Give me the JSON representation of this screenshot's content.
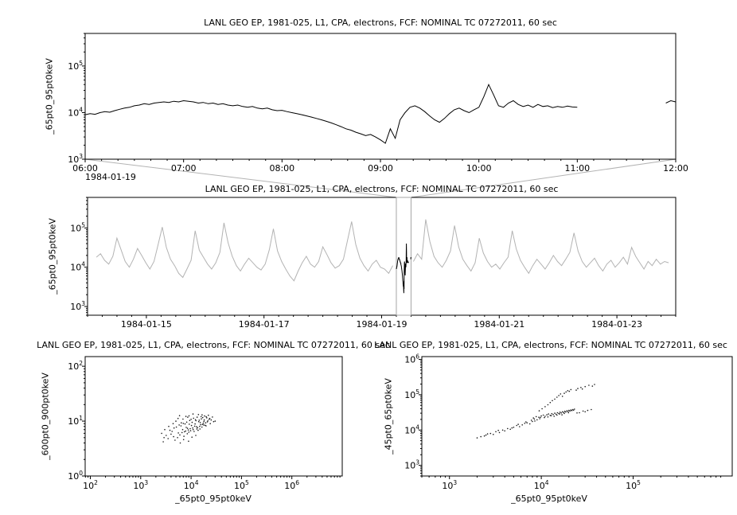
{
  "app": {
    "background": "#ffffff",
    "text_color": "#000000",
    "series_color": "#000000",
    "overview_series_color": "#b3b3b3",
    "highlight_series_color": "#000000",
    "selection_box_color": "#a6a6a6",
    "connector_color": "#b3b3b3",
    "scatter_dot_color": "#1a1a1a"
  },
  "chart_data": [
    {
      "id": "detail-timeseries",
      "type": "line",
      "title": "LANL GEO EP, 1981-025, L1, CPA, electrons, FCF: NOMINAL TC 07272011, 60 sec",
      "ylabel": "_65pt0_95pt0keV",
      "xlabel": "",
      "x_context_label": "1984-01-19",
      "x_log": false,
      "xlim": [
        6,
        12
      ],
      "ylim": [
        1000,
        500000
      ],
      "y_ticks_exponents": [
        3,
        4,
        5
      ],
      "x_ticks": [
        {
          "value": 6,
          "label": "06:00"
        },
        {
          "value": 7,
          "label": "07:00"
        },
        {
          "value": 8,
          "label": "08:00"
        },
        {
          "value": 9,
          "label": "09:00"
        },
        {
          "value": 10,
          "label": "10:00"
        },
        {
          "value": 11,
          "label": "11:00"
        },
        {
          "value": 12,
          "label": "12:00"
        }
      ],
      "x_minor_step": 0.166667,
      "x_start": 6.0,
      "x_step": 0.05,
      "value_scale": 1000,
      "values": [
        9,
        9.5,
        9.2,
        10,
        10.5,
        10.2,
        11,
        11.8,
        12.5,
        13,
        14,
        14.5,
        15.5,
        15,
        16,
        16.5,
        17,
        16.5,
        17.5,
        17,
        18,
        17.5,
        17,
        16,
        16.5,
        15.5,
        16,
        15,
        15.5,
        14.5,
        14,
        14.5,
        13.5,
        13,
        13.5,
        12.5,
        12,
        12.5,
        11.5,
        11,
        11.2,
        10.5,
        10,
        9.5,
        9,
        8.5,
        8,
        7.5,
        7,
        6.5,
        6,
        5.5,
        5,
        4.5,
        4.2,
        3.8,
        3.5,
        3.2,
        3.4,
        3,
        2.6,
        2.2,
        4.5,
        2.8,
        7,
        10,
        13,
        14,
        12.5,
        10.5,
        8.5,
        7,
        6.2,
        7.5,
        9.5,
        11.5,
        12.5,
        11,
        10,
        11.5,
        13,
        22,
        40,
        24,
        14,
        13,
        16,
        18,
        15,
        13.5,
        14.5,
        13,
        15,
        13.5,
        14,
        12.8,
        13.5,
        13,
        13.8,
        13.2,
        13,
        null,
        null,
        null,
        null,
        null,
        null,
        null,
        null,
        null,
        null,
        null,
        null,
        null,
        null,
        null,
        null,
        null,
        16,
        18,
        17
      ]
    },
    {
      "id": "overview-timeseries",
      "type": "line",
      "title": "LANL GEO EP, 1981-025, L1, CPA, electrons, FCF: NOMINAL TC 07272011, 60 sec",
      "ylabel": "_65pt0_95pt0keV",
      "xlabel": "",
      "x_log": false,
      "xlim": [
        0,
        10
      ],
      "ylim": [
        600,
        600000
      ],
      "y_ticks_exponents": [
        3,
        4,
        5
      ],
      "x_ticks": [
        {
          "value": 1,
          "label": "1984-01-15"
        },
        {
          "value": 3,
          "label": "1984-01-17"
        },
        {
          "value": 5,
          "label": "1984-01-19"
        },
        {
          "value": 7,
          "label": "1984-01-21"
        },
        {
          "value": 9,
          "label": "1984-01-23"
        }
      ],
      "x_minor_step": 0.25,
      "x_start": 0.15,
      "x_step": 0.07,
      "value_scale": 1000,
      "values": [
        18,
        22,
        15,
        12,
        19,
        55,
        28,
        14,
        10,
        16,
        30,
        20,
        13,
        9,
        14,
        38,
        105,
        32,
        16,
        11,
        7,
        5.5,
        9,
        15,
        85,
        27,
        18,
        12,
        9,
        13,
        24,
        135,
        42,
        19,
        11,
        8,
        12,
        17,
        13,
        10,
        8.5,
        12,
        28,
        95,
        26,
        14,
        9,
        6,
        4.5,
        8,
        13,
        19,
        12,
        10,
        14,
        33,
        21,
        13,
        9.5,
        11,
        16,
        48,
        145,
        38,
        17,
        11,
        8,
        12,
        15,
        10,
        9,
        7,
        11,
        null,
        null,
        null,
        null,
        14,
        22,
        16,
        165,
        45,
        19,
        13,
        10,
        15,
        26,
        115,
        33,
        16,
        11,
        8,
        13,
        55,
        23,
        14,
        10,
        12,
        9,
        13,
        18,
        85,
        29,
        15,
        10,
        7,
        11,
        16,
        12,
        9,
        13,
        20,
        14,
        11,
        16,
        24,
        75,
        26,
        14,
        10,
        13,
        17,
        11,
        8,
        12,
        15,
        10,
        13,
        18,
        12,
        32,
        19,
        13,
        9,
        14,
        11,
        16,
        12,
        14,
        13
      ],
      "selection": {
        "x_range": [
          5.25,
          5.5
        ],
        "source_chart": 0
      }
    },
    {
      "id": "scatter-600-900",
      "type": "scatter",
      "title": "LANL GEO EP, 1981-025, L1, CPA, electrons, FCF: NOMINAL TC 07272011, 60 sec",
      "ylabel": "_600pt0_900pt0keV",
      "xlabel": "_65pt0_95pt0keV",
      "x_log": true,
      "xlim": [
        79,
        10000000
      ],
      "ylim": [
        1,
        150
      ],
      "x_ticks_exponents": [
        2,
        3,
        4,
        5,
        6
      ],
      "y_ticks_exponents": [
        0,
        1,
        2
      ],
      "x_scale": 1000,
      "y_scale": 1,
      "points_x": [
        4.2,
        5.1,
        6.3,
        7.0,
        8.5,
        9.2,
        10.5,
        11.8,
        12.5,
        13.0,
        14.2,
        15.5,
        16.0,
        17.5,
        18.2,
        19.0,
        20.5,
        21.0,
        22.8,
        24.0,
        3.2,
        3.8,
        4.5,
        5.6,
        6.8,
        7.4,
        8.0,
        8.8,
        9.6,
        10.2,
        11.0,
        12.0,
        13.5,
        14.8,
        15.2,
        16.8,
        18.0,
        19.5,
        21.5,
        23.5,
        2.8,
        3.5,
        4.0,
        4.8,
        5.4,
        6.0,
        6.6,
        7.2,
        7.8,
        8.4,
        9.0,
        9.8,
        10.8,
        11.5,
        12.8,
        13.8,
        15.0,
        16.4,
        17.8,
        19.8,
        5.8,
        6.4,
        7.6,
        8.2,
        9.4,
        10.0,
        11.2,
        12.2,
        13.2,
        14.5,
        15.8,
        17.0,
        18.5,
        20.0,
        22.0,
        25.0,
        26.5,
        28.0,
        14.0,
        16.5,
        3.0,
        3.6,
        4.4,
        5.0,
        5.5,
        6.1,
        7.1,
        8.9,
        10.4,
        12.4,
        2.6,
        2.9,
        30.0,
        9.1,
        10.9,
        8.6,
        7.9,
        6.9,
        5.9,
        4.6
      ],
      "points_y": [
        6.5,
        7.8,
        8.2,
        9.1,
        7.4,
        8.8,
        9.5,
        8.1,
        10.2,
        7.2,
        9.8,
        8.6,
        11.0,
        9.2,
        10.5,
        8.4,
        11.5,
        9.7,
        10.8,
        9.0,
        5.5,
        6.8,
        5.2,
        6.1,
        7.0,
        6.4,
        7.7,
        6.9,
        7.3,
        8.3,
        7.0,
        8.9,
        7.6,
        8.0,
        9.4,
        8.7,
        9.9,
        9.3,
        10.1,
        11.2,
        4.2,
        4.8,
        5.8,
        4.5,
        5.0,
        5.6,
        6.2,
        5.3,
        6.6,
        5.9,
        6.3,
        6.7,
        7.5,
        6.5,
        7.9,
        6.8,
        7.2,
        7.8,
        8.5,
        8.2,
        8.5,
        9.3,
        8.9,
        9.6,
        10.3,
        10.8,
        11.3,
        10.6,
        11.8,
        10.4,
        12.1,
        11.6,
        12.4,
        12.0,
        12.8,
        10.5,
        11.9,
        9.8,
        13.2,
        13.0,
        7.0,
        8.0,
        9.0,
        10.0,
        11.2,
        4.0,
        4.6,
        4.3,
        5.1,
        5.5,
        6.0,
        5.0,
        10.0,
        12.5,
        13.5,
        11.8,
        12.2,
        10.9,
        12.6,
        7.5
      ]
    },
    {
      "id": "scatter-45-65",
      "type": "scatter",
      "title": "LANL GEO EP, 1981-025, L1, CPA, electrons, FCF: NOMINAL TC 07272011, 60 sec",
      "ylabel": "_45pt0_65pt0keV",
      "xlabel": "_65pt0_95pt0keV",
      "x_log": true,
      "xlim": [
        500,
        1200000
      ],
      "ylim": [
        500,
        1200000
      ],
      "x_ticks_exponents": [
        3,
        4,
        5
      ],
      "y_ticks_exponents": [
        3,
        4,
        5,
        6
      ],
      "x_scale": 1000,
      "y_scale": 1000,
      "points_x": [
        2.2,
        2.5,
        2.8,
        3.0,
        3.2,
        3.5,
        3.8,
        4.0,
        4.3,
        4.6,
        5.0,
        5.4,
        5.8,
        6.2,
        6.6,
        7.0,
        7.5,
        8.0,
        8.5,
        9.0,
        8.2,
        8.8,
        9.4,
        10.0,
        10.5,
        11.0,
        11.5,
        12.0,
        12.5,
        13.0,
        13.5,
        14.0,
        14.5,
        15.0,
        15.5,
        16.0,
        16.5,
        17.0,
        17.5,
        18.0,
        18.5,
        19.0,
        19.5,
        20.0,
        20.5,
        21.0,
        21.5,
        22.0,
        22.5,
        23.0,
        9.6,
        10.8,
        11.8,
        12.8,
        13.8,
        14.8,
        15.8,
        16.8,
        17.8,
        19.8,
        9.5,
        10.2,
        11.0,
        11.8,
        12.5,
        13.2,
        14.0,
        14.8,
        15.5,
        16.2,
        17.0,
        17.8,
        18.6,
        19.4,
        20.2,
        21.0,
        25,
        27,
        30,
        33,
        36,
        28,
        24,
        38,
        2.0,
        2.4,
        2.6,
        3.4,
        4.8,
        5.6,
        6.8,
        7.8,
        8.4,
        9.8,
        30,
        26,
        28.5,
        24.5,
        32,
        35
      ],
      "points_y": [
        6.5,
        7.2,
        8.0,
        7.5,
        9.0,
        8.5,
        10.0,
        9.5,
        11.0,
        10.5,
        12.0,
        13.5,
        12.5,
        14.0,
        15.5,
        16.0,
        15.0,
        17.5,
        18.0,
        19.5,
        22.0,
        24.0,
        23.0,
        25.0,
        26.5,
        24.5,
        27.0,
        28.5,
        26.0,
        29.0,
        27.5,
        30.0,
        28.0,
        31.0,
        29.5,
        32.0,
        30.5,
        33.0,
        31.5,
        34.0,
        32.5,
        35.0,
        33.5,
        36.0,
        34.5,
        37.0,
        35.5,
        38.0,
        36.5,
        39.0,
        21.0,
        22.5,
        23.5,
        25.5,
        24.5,
        26.5,
        28.5,
        27.0,
        29.5,
        31.0,
        35,
        40,
        46,
        52,
        60,
        68,
        75,
        85,
        95,
        105,
        90,
        110,
        120,
        130,
        125,
        140,
        150,
        160,
        170,
        185,
        175,
        145,
        135,
        195,
        6.0,
        6.8,
        7.8,
        9.8,
        11.5,
        14.5,
        17.0,
        19.0,
        20.5,
        22.8,
        33,
        31,
        34.5,
        30.5,
        36,
        38
      ]
    }
  ]
}
